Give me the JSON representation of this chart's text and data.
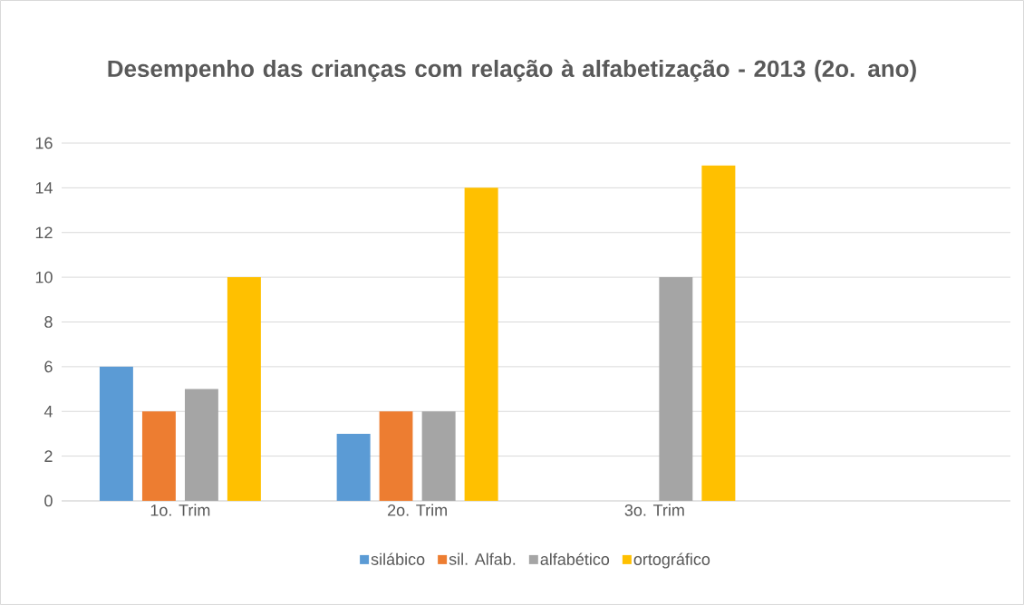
{
  "chart_data": {
    "type": "bar",
    "title": "Desempenho das crianças com relação à alfabetização - 2013 (2o. ano)",
    "categories": [
      "1o. Trim",
      "2o. Trim",
      "3o. Trim",
      null
    ],
    "series": [
      {
        "name": "silábico",
        "color": "#5b9bd5",
        "values": [
          6,
          3,
          null,
          null
        ]
      },
      {
        "name": "sil. Alfab.",
        "color": "#ed7d31",
        "values": [
          4,
          4,
          null,
          null
        ]
      },
      {
        "name": "alfabético",
        "color": "#a5a5a5",
        "values": [
          5,
          4,
          10,
          null
        ]
      },
      {
        "name": "ortográfico",
        "color": "#ffc000",
        "values": [
          10,
          14,
          15,
          null
        ]
      }
    ],
    "ylim": [
      0,
      16
    ],
    "yticks": [
      0,
      2,
      4,
      6,
      8,
      10,
      12,
      14,
      16
    ],
    "grid": "y",
    "legend": "bottom"
  }
}
